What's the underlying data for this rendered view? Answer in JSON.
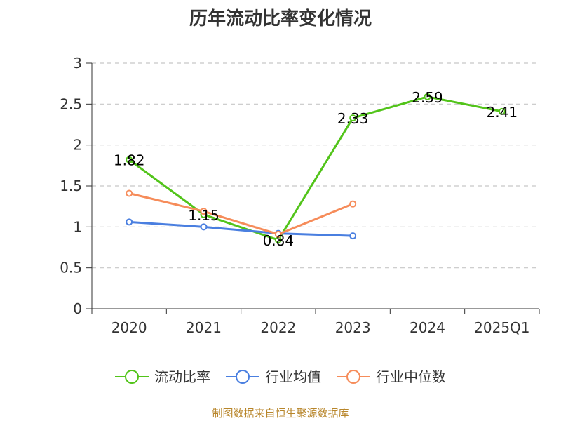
{
  "chart_data": {
    "type": "line",
    "title": "历年流动比率变化情况",
    "categories": [
      "2020",
      "2021",
      "2022",
      "2023",
      "2024",
      "2025Q1"
    ],
    "ylim": [
      0,
      3
    ],
    "yticks": [
      "0",
      "0.5",
      "1",
      "1.5",
      "2",
      "2.5",
      "3"
    ],
    "ytick_values": [
      0,
      0.5,
      1,
      1.5,
      2,
      2.5,
      3
    ],
    "grid": true,
    "legend_position": "bottom",
    "series": [
      {
        "name": "流动比率",
        "color": "#52c41a",
        "values": [
          1.82,
          1.15,
          0.84,
          2.33,
          2.59,
          2.41
        ],
        "labels": [
          "1.82",
          "1.15",
          "0.84",
          "2.33",
          "2.59",
          "2.41"
        ]
      },
      {
        "name": "行业均值",
        "color": "#4a7fe0",
        "values": [
          1.06,
          1.0,
          0.92,
          0.89,
          null,
          null
        ]
      },
      {
        "name": "行业中位数",
        "color": "#f68c5a",
        "values": [
          1.41,
          1.19,
          0.91,
          1.28,
          null,
          null
        ]
      }
    ],
    "source": "制图数据来自恒生聚源数据库"
  }
}
